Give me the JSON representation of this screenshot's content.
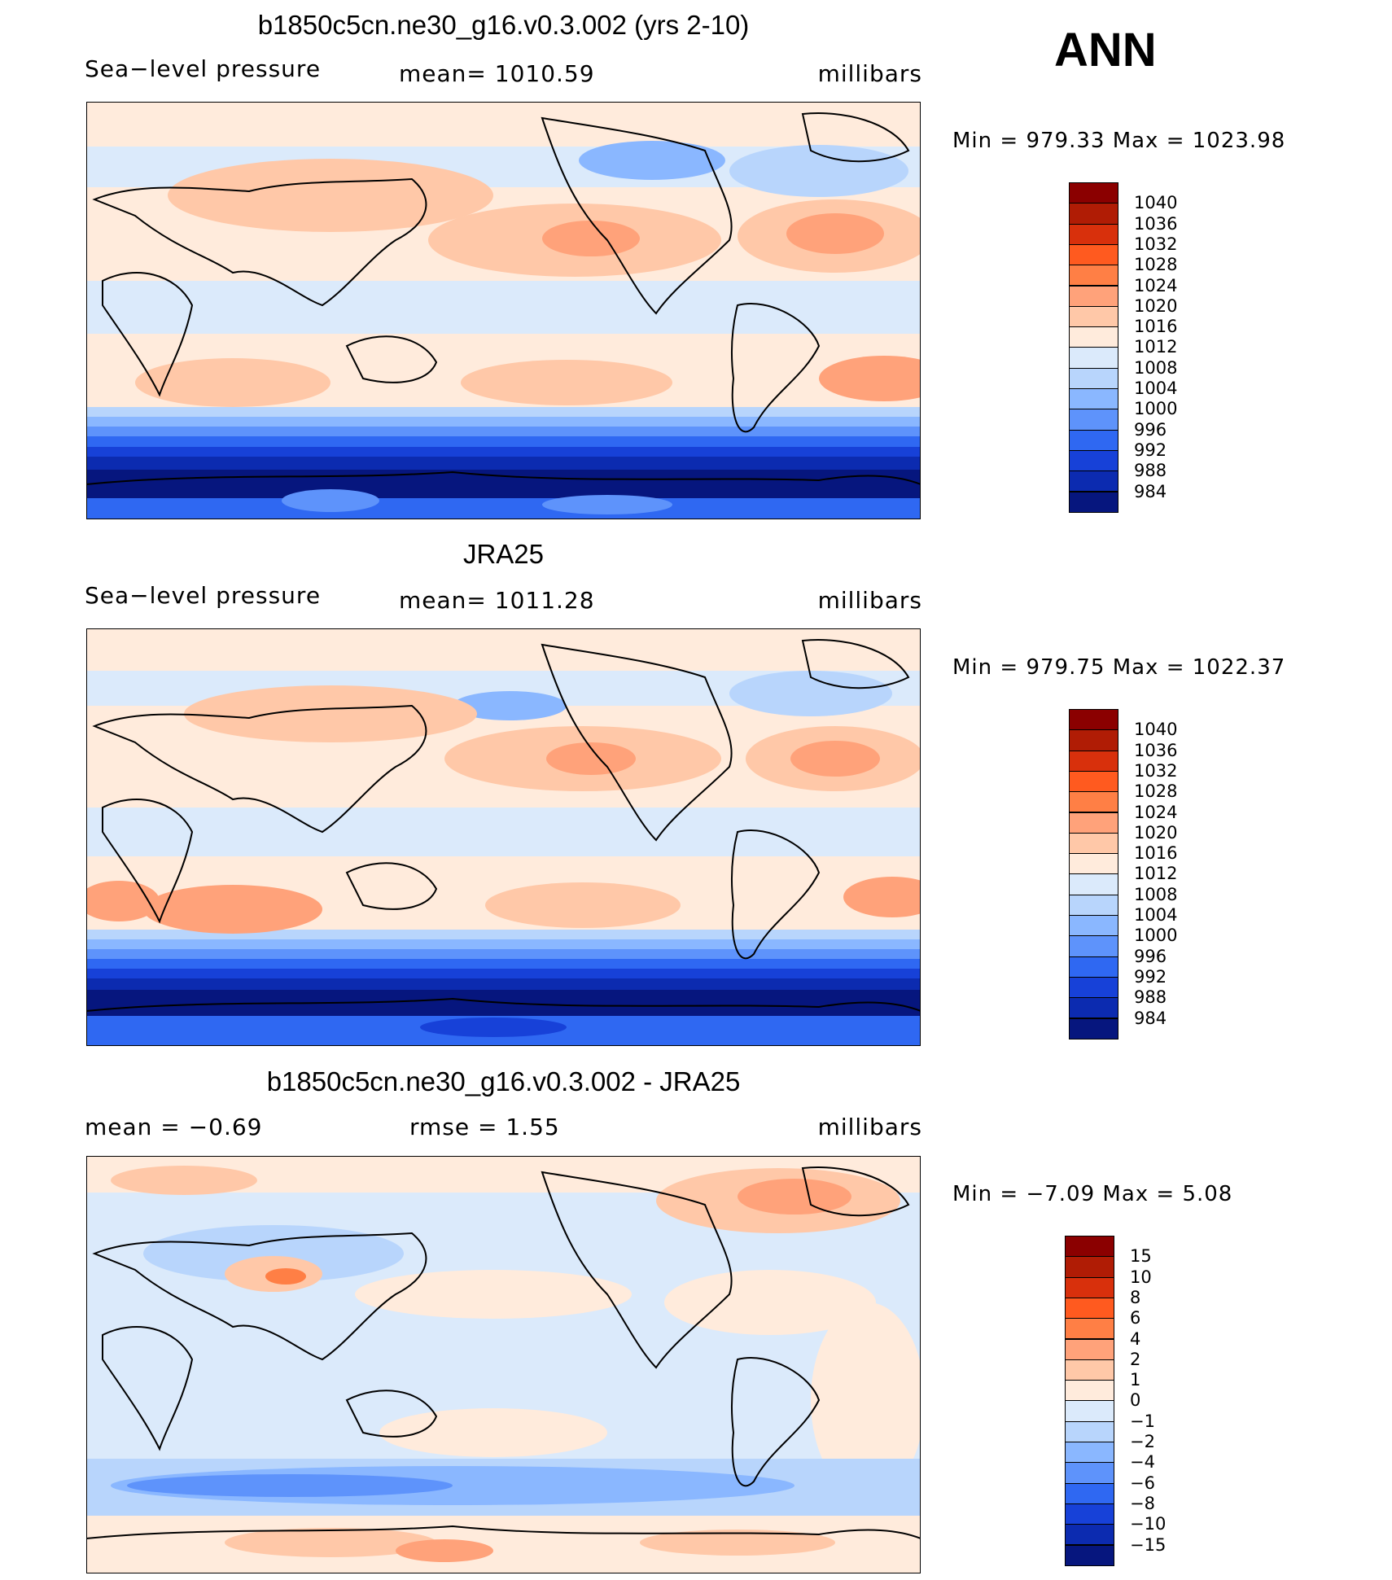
{
  "season": "ANN",
  "panels": [
    {
      "title": "b1850c5cn.ne30_g16.v0.3.002 (yrs 2-10)",
      "left_label": "Sea−level pressure",
      "mid_label": "mean=  1010.59",
      "right_label": "millibars",
      "minmax": "Min  =  979.33  Max  =  1023.98",
      "colorbar": {
        "colors": [
          "#8b0000",
          "#b01c05",
          "#d8300c",
          "#ff5a1f",
          "#ff7f45",
          "#ffa27a",
          "#ffc8a8",
          "#ffebdc",
          "#dbeafb",
          "#b8d5fc",
          "#8ab7ff",
          "#5e93fb",
          "#2f68f2",
          "#1741d8",
          "#0c2bb0",
          "#06167e"
        ],
        "ticks": [
          "1040",
          "1036",
          "1032",
          "1028",
          "1024",
          "1020",
          "1016",
          "1012",
          "1008",
          "1004",
          "1000",
          "996",
          "992",
          "988",
          "984"
        ]
      }
    },
    {
      "title": "JRA25",
      "left_label": "Sea−level pressure",
      "mid_label": "mean=  1011.28",
      "right_label": "millibars",
      "minmax": "Min  =  979.75  Max  =  1022.37",
      "colorbar": {
        "colors": [
          "#8b0000",
          "#b01c05",
          "#d8300c",
          "#ff5a1f",
          "#ff7f45",
          "#ffa27a",
          "#ffc8a8",
          "#ffebdc",
          "#dbeafb",
          "#b8d5fc",
          "#8ab7ff",
          "#5e93fb",
          "#2f68f2",
          "#1741d8",
          "#0c2bb0",
          "#06167e"
        ],
        "ticks": [
          "1040",
          "1036",
          "1032",
          "1028",
          "1024",
          "1020",
          "1016",
          "1012",
          "1008",
          "1004",
          "1000",
          "996",
          "992",
          "988",
          "984"
        ]
      }
    },
    {
      "title": "b1850c5cn.ne30_g16.v0.3.002 - JRA25",
      "left_label": "mean  =    −0.69",
      "mid_label": "rmse  =      1.55",
      "right_label": "millibars",
      "minmax": "Min  =    −7.09  Max  =      5.08",
      "colorbar": {
        "colors": [
          "#8b0000",
          "#b01c05",
          "#d8300c",
          "#ff5a1f",
          "#ff7f45",
          "#ffa27a",
          "#ffc8a8",
          "#ffebdc",
          "#dbeafb",
          "#b8d5fc",
          "#8ab7ff",
          "#5e93fb",
          "#2f68f2",
          "#1741d8",
          "#0c2bb0",
          "#06167e"
        ],
        "ticks": [
          "15",
          "10",
          "8",
          "6",
          "4",
          "2",
          "1",
          "0",
          "−1",
          "−2",
          "−4",
          "−6",
          "−8",
          "−10",
          "−15"
        ]
      }
    }
  ]
}
